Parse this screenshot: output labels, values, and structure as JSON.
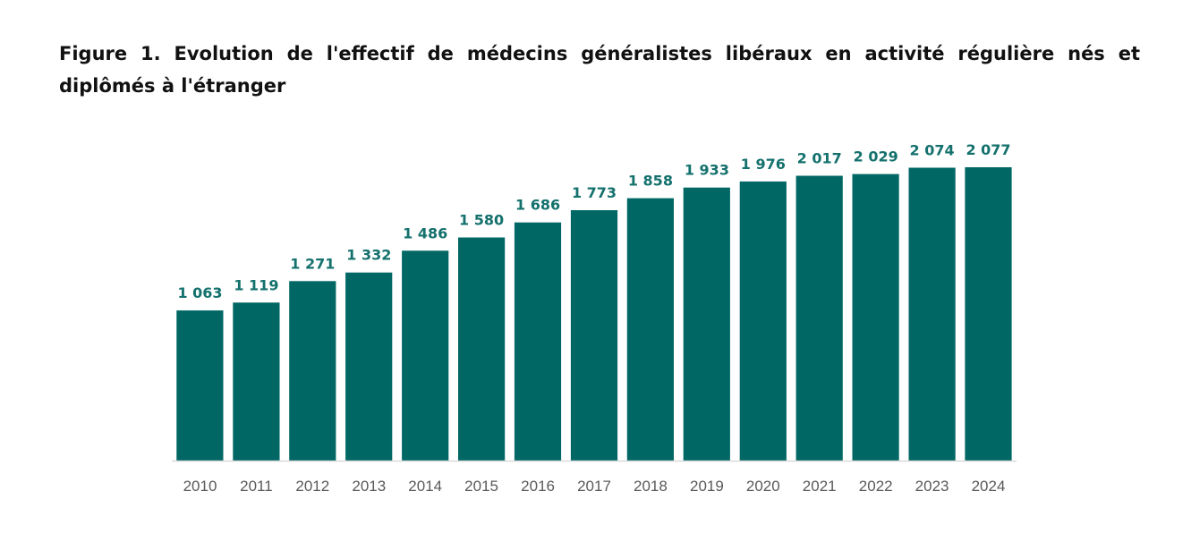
{
  "figure": {
    "title": "Figure 1. Evolution de l'effectif de médecins généralistes libéraux en activité régulière nés et diplômés à l'étranger"
  },
  "chart_data": {
    "type": "bar",
    "title": "Figure 1. Evolution de l'effectif de médecins généralistes libéraux en activité régulière nés et diplômés à l'étranger",
    "xlabel": "",
    "ylabel": "",
    "categories": [
      "2010",
      "2011",
      "2012",
      "2013",
      "2014",
      "2015",
      "2016",
      "2017",
      "2018",
      "2019",
      "2020",
      "2021",
      "2022",
      "2023",
      "2024"
    ],
    "values": [
      1063,
      1119,
      1271,
      1332,
      1486,
      1580,
      1686,
      1773,
      1858,
      1933,
      1976,
      2017,
      2029,
      2074,
      2077
    ],
    "value_labels": [
      "1 063",
      "1 119",
      "1 271",
      "1 332",
      "1 486",
      "1 580",
      "1 686",
      "1 773",
      "1 858",
      "1 933",
      "1 976",
      "2 017",
      "2 029",
      "2 074",
      "2 077"
    ],
    "ylim": [
      0,
      2077
    ],
    "grid": false,
    "legend": "none",
    "colors": {
      "bar": "#006764",
      "value_label": "#14716d",
      "tick_label": "#595959",
      "axis": "#d9d9d9"
    }
  }
}
